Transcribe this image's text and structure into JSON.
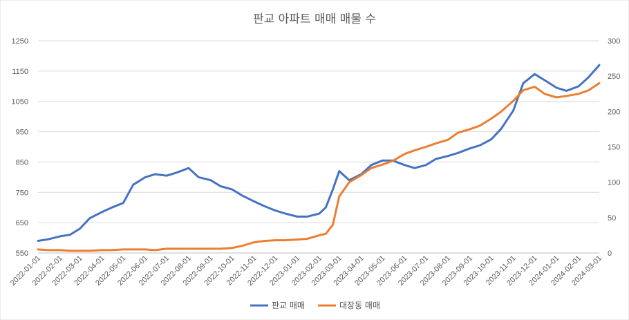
{
  "chart_data": {
    "type": "line",
    "title": "판교 아파트 매매 매물 수",
    "y_left": {
      "min": 550,
      "max": 1250,
      "ticks": [
        "550",
        "650",
        "750",
        "850",
        "950",
        "1050",
        "1150",
        "1250"
      ]
    },
    "y_right": {
      "min": 0,
      "max": 300,
      "ticks": [
        "0",
        "50",
        "100",
        "150",
        "200",
        "250",
        "300"
      ]
    },
    "x_labels": [
      "2022-01-01",
      "2022-02-01",
      "2022-03-01",
      "2022-04-01",
      "2022-05-01",
      "2022-06-01",
      "2022-07-01",
      "2022-08-01",
      "2022-09-01",
      "2022-10-01",
      "2022-11-01",
      "2022-12-01",
      "2023-01-01",
      "2023-02-01",
      "2023-03-01",
      "2023-04-01",
      "2023-05-01",
      "2023-06-01",
      "2023-07-01",
      "2023-08-01",
      "2023-09-01",
      "2023-10-01",
      "2023-11-01",
      "2023-12-01",
      "2024-01-01",
      "2024-02-01",
      "2024-03-01"
    ],
    "series": [
      {
        "name": "판교 매매",
        "axis": "left",
        "color": "#4472c4",
        "x": [
          "2022-01-01",
          "2022-01-15",
          "2022-02-01",
          "2022-02-15",
          "2022-03-01",
          "2022-03-15",
          "2022-04-01",
          "2022-04-15",
          "2022-05-01",
          "2022-05-15",
          "2022-06-01",
          "2022-06-15",
          "2022-07-01",
          "2022-07-15",
          "2022-08-01",
          "2022-08-15",
          "2022-09-01",
          "2022-09-15",
          "2022-10-01",
          "2022-10-15",
          "2022-11-01",
          "2022-11-15",
          "2022-12-01",
          "2022-12-15",
          "2023-01-01",
          "2023-01-15",
          "2023-02-01",
          "2023-02-10",
          "2023-02-20",
          "2023-03-01",
          "2023-03-15",
          "2023-04-01",
          "2023-04-15",
          "2023-05-01",
          "2023-05-15",
          "2023-06-01",
          "2023-06-15",
          "2023-07-01",
          "2023-07-15",
          "2023-08-01",
          "2023-08-15",
          "2023-09-01",
          "2023-09-15",
          "2023-10-01",
          "2023-10-15",
          "2023-11-01",
          "2023-11-15",
          "2023-12-01",
          "2023-12-15",
          "2024-01-01",
          "2024-01-15",
          "2024-02-01",
          "2024-02-15",
          "2024-03-01"
        ],
        "values": [
          590,
          595,
          605,
          610,
          630,
          665,
          685,
          700,
          715,
          775,
          800,
          810,
          805,
          815,
          830,
          800,
          790,
          770,
          760,
          740,
          720,
          705,
          690,
          680,
          670,
          670,
          680,
          700,
          760,
          820,
          790,
          810,
          840,
          855,
          855,
          840,
          830,
          840,
          860,
          870,
          880,
          895,
          905,
          925,
          960,
          1020,
          1110,
          1140,
          1120,
          1095,
          1085,
          1100,
          1130,
          1170
        ]
      },
      {
        "name": "대장동 매매",
        "axis": "right",
        "color": "#ed7d31",
        "x": [
          "2022-01-01",
          "2022-01-15",
          "2022-02-01",
          "2022-02-15",
          "2022-03-01",
          "2022-03-15",
          "2022-04-01",
          "2022-04-15",
          "2022-05-01",
          "2022-05-15",
          "2022-06-01",
          "2022-06-15",
          "2022-07-01",
          "2022-07-15",
          "2022-08-01",
          "2022-08-15",
          "2022-09-01",
          "2022-09-15",
          "2022-10-01",
          "2022-10-15",
          "2022-11-01",
          "2022-11-15",
          "2022-12-01",
          "2022-12-15",
          "2023-01-01",
          "2023-01-15",
          "2023-02-01",
          "2023-02-10",
          "2023-02-20",
          "2023-03-01",
          "2023-03-15",
          "2023-04-01",
          "2023-04-15",
          "2023-05-01",
          "2023-05-15",
          "2023-06-01",
          "2023-06-15",
          "2023-07-01",
          "2023-07-15",
          "2023-08-01",
          "2023-08-15",
          "2023-09-01",
          "2023-09-15",
          "2023-10-01",
          "2023-10-15",
          "2023-11-01",
          "2023-11-15",
          "2023-12-01",
          "2023-12-15",
          "2024-01-01",
          "2024-01-15",
          "2024-02-01",
          "2024-02-15",
          "2024-03-01"
        ],
        "values": [
          5,
          4,
          4,
          3,
          3,
          3,
          4,
          4,
          5,
          5,
          5,
          4,
          6,
          6,
          6,
          6,
          6,
          6,
          7,
          10,
          15,
          17,
          18,
          18,
          19,
          20,
          25,
          27,
          40,
          80,
          100,
          110,
          120,
          125,
          130,
          140,
          145,
          150,
          155,
          160,
          170,
          175,
          180,
          190,
          200,
          215,
          230,
          235,
          225,
          220,
          222,
          225,
          230,
          240
        ]
      }
    ],
    "legend": {
      "placement": "bottom"
    }
  }
}
